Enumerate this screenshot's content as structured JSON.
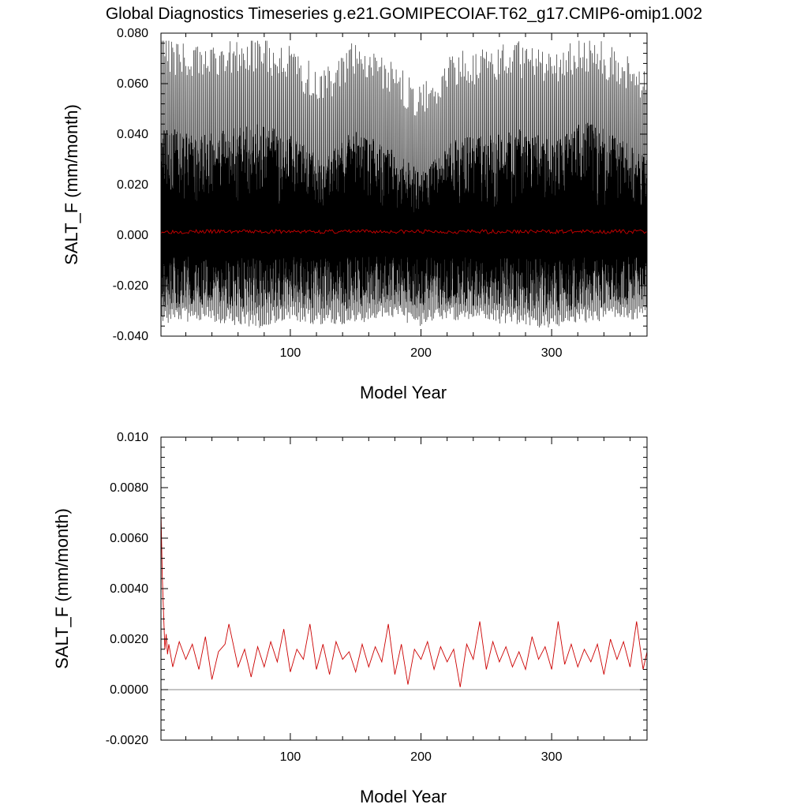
{
  "title": "Global Diagnostics Timeseries g.e21.GOMIPECOIAF.T62_g17.CMIP6-omip1.002",
  "colors": {
    "raw": "#000000",
    "annual": "#cc0000",
    "zero_line": "#888888",
    "axis": "#000000"
  },
  "chart_data": [
    {
      "type": "line",
      "xlabel": "Model Year",
      "ylabel": "SALT_F (mm/month)",
      "xlim": [
        1,
        373
      ],
      "ylim": [
        -0.04,
        0.08
      ],
      "x_ticks": [
        100,
        200,
        300
      ],
      "x_tick_labels": [
        "100",
        "200",
        "300"
      ],
      "y_ticks": [
        -0.04,
        -0.02,
        0.0,
        0.02,
        0.04,
        0.06,
        0.08
      ],
      "y_tick_labels": [
        "-0.040",
        "-0.020",
        "0.000",
        "0.020",
        "0.040",
        "0.060",
        "0.080"
      ],
      "series": [
        {
          "kind": "monthly",
          "color": "#000000",
          "samples_per_year": 12,
          "approx_max": 0.077,
          "approx_min": -0.038,
          "envelope_years": [
            1,
            25,
            50,
            75,
            100,
            125,
            150,
            175,
            200,
            225,
            250,
            275,
            300,
            325,
            350,
            373
          ],
          "envelope_high": [
            0.045,
            0.04,
            0.042,
            0.045,
            0.04,
            0.03,
            0.043,
            0.035,
            0.025,
            0.038,
            0.04,
            0.042,
            0.038,
            0.045,
            0.04,
            0.03
          ],
          "envelope_low": [
            -0.03,
            -0.028,
            -0.029,
            -0.031,
            -0.028,
            -0.03,
            -0.029,
            -0.027,
            -0.03,
            -0.028,
            -0.029,
            -0.03,
            -0.031,
            -0.029,
            -0.028,
            -0.027
          ]
        },
        {
          "kind": "annual",
          "color": "#cc0000",
          "approx_mean": 0.0014
        }
      ],
      "grid": false
    },
    {
      "type": "line",
      "xlabel": "Model Year",
      "ylabel": "SALT_F (mm/month)",
      "xlim": [
        1,
        373
      ],
      "ylim": [
        -0.002,
        0.01
      ],
      "x_ticks": [
        100,
        200,
        300
      ],
      "x_tick_labels": [
        "100",
        "200",
        "300"
      ],
      "y_ticks": [
        -0.002,
        0.0,
        0.002,
        0.004,
        0.006,
        0.008,
        0.01
      ],
      "y_tick_labels": [
        "-0.0020",
        "0.0000",
        "0.0020",
        "0.0040",
        "0.0060",
        "0.0080",
        "0.010"
      ],
      "zero_line": true,
      "series": [
        {
          "kind": "annual",
          "color": "#cc0000",
          "x": [
            1,
            2,
            3,
            4,
            5,
            6,
            7,
            10,
            15,
            20,
            25,
            30,
            35,
            40,
            45,
            50,
            53,
            60,
            65,
            70,
            75,
            80,
            85,
            90,
            95,
            100,
            105,
            110,
            115,
            120,
            125,
            130,
            135,
            140,
            145,
            150,
            155,
            160,
            165,
            170,
            175,
            180,
            185,
            190,
            195,
            200,
            205,
            210,
            215,
            220,
            225,
            230,
            235,
            240,
            245,
            250,
            255,
            260,
            265,
            270,
            275,
            280,
            285,
            290,
            295,
            300,
            305,
            310,
            315,
            320,
            325,
            330,
            335,
            340,
            345,
            350,
            355,
            360,
            365,
            370,
            373
          ],
          "y": [
            0.0071,
            0.0045,
            0.003,
            0.0016,
            0.0022,
            0.0014,
            0.0018,
            0.0009,
            0.0019,
            0.0012,
            0.0018,
            0.0008,
            0.0021,
            0.0004,
            0.0015,
            0.0018,
            0.0026,
            0.0009,
            0.0016,
            0.0005,
            0.0017,
            0.0009,
            0.0019,
            0.0011,
            0.0024,
            0.0007,
            0.0016,
            0.0012,
            0.0026,
            0.0008,
            0.0018,
            0.0006,
            0.0019,
            0.0012,
            0.0015,
            0.0007,
            0.0018,
            0.0009,
            0.0017,
            0.0011,
            0.0026,
            0.0006,
            0.0018,
            0.0002,
            0.0016,
            0.0012,
            0.0019,
            0.0008,
            0.0017,
            0.0011,
            0.0016,
            0.0001,
            0.0018,
            0.0012,
            0.0027,
            0.0008,
            0.0019,
            0.0011,
            0.0017,
            0.0009,
            0.0015,
            0.0008,
            0.0021,
            0.0012,
            0.0017,
            0.0008,
            0.0027,
            0.001,
            0.0018,
            0.0009,
            0.0016,
            0.0011,
            0.0018,
            0.0006,
            0.002,
            0.0012,
            0.0019,
            0.0009,
            0.0027,
            0.0008,
            0.0015
          ]
        }
      ],
      "grid": false
    }
  ]
}
